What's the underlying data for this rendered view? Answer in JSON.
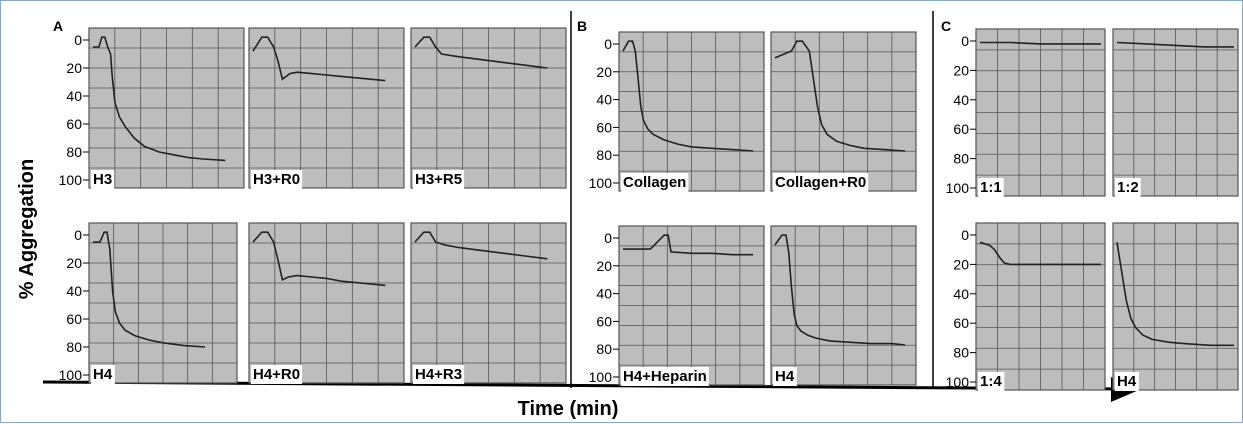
{
  "figure": {
    "y_label": "% Aggregation",
    "x_label": "Time (min)",
    "panels": [
      {
        "letter": "A"
      },
      {
        "letter": "B"
      },
      {
        "letter": "C"
      }
    ]
  },
  "chart_data": [
    {
      "type": "line",
      "panel": "A",
      "label": "H3",
      "yticks": [
        0,
        20,
        40,
        60,
        80,
        100
      ],
      "ylim": [
        0,
        100
      ],
      "series": [
        {
          "x": [
            0,
            0.04,
            0.06,
            0.08,
            0.1,
            0.12,
            0.13,
            0.15,
            0.18,
            0.22,
            0.28,
            0.35,
            0.45,
            0.55,
            0.65,
            0.75,
            0.9
          ],
          "y": [
            5,
            5,
            -2,
            -2,
            5,
            10,
            25,
            45,
            55,
            62,
            70,
            76,
            80,
            82,
            84,
            85,
            86
          ]
        }
      ]
    },
    {
      "type": "line",
      "panel": "A",
      "label": "H3+R0",
      "yticks": [],
      "ylim": [
        0,
        100
      ],
      "series": [
        {
          "x": [
            0,
            0.06,
            0.1,
            0.14,
            0.17,
            0.2,
            0.25,
            0.3,
            0.4,
            0.5,
            0.6,
            0.7,
            0.8,
            0.9
          ],
          "y": [
            8,
            -2,
            -2,
            5,
            15,
            28,
            24,
            23,
            24,
            25,
            26,
            27,
            28,
            29
          ]
        }
      ]
    },
    {
      "type": "line",
      "panel": "A",
      "label": "H3+R5",
      "yticks": [],
      "ylim": [
        0,
        100
      ],
      "series": [
        {
          "x": [
            0,
            0.06,
            0.1,
            0.14,
            0.18,
            0.3,
            0.45,
            0.6,
            0.75,
            0.9
          ],
          "y": [
            5,
            -2,
            -2,
            5,
            10,
            12,
            14,
            16,
            18,
            20
          ]
        }
      ]
    },
    {
      "type": "line",
      "panel": "A",
      "label": "H4",
      "yticks": [
        0,
        20,
        40,
        60,
        80,
        100
      ],
      "ylim": [
        0,
        100
      ],
      "series": [
        {
          "x": [
            0,
            0.05,
            0.08,
            0.1,
            0.12,
            0.14,
            0.16,
            0.19,
            0.23,
            0.3,
            0.4,
            0.5,
            0.65,
            0.8
          ],
          "y": [
            5,
            5,
            -2,
            -2,
            10,
            40,
            55,
            63,
            68,
            72,
            75,
            77,
            79,
            80
          ]
        }
      ]
    },
    {
      "type": "line",
      "panel": "A",
      "label": "H4+R0",
      "yticks": [],
      "ylim": [
        0,
        100
      ],
      "series": [
        {
          "x": [
            0,
            0.06,
            0.1,
            0.14,
            0.17,
            0.2,
            0.24,
            0.3,
            0.4,
            0.5,
            0.6,
            0.7,
            0.8,
            0.9
          ],
          "y": [
            5,
            -2,
            -2,
            5,
            18,
            32,
            30,
            29,
            30,
            31,
            33,
            34,
            35,
            36
          ]
        }
      ]
    },
    {
      "type": "line",
      "panel": "A",
      "label": "H4+R3",
      "yticks": [],
      "ylim": [
        0,
        100
      ],
      "series": [
        {
          "x": [
            0,
            0.06,
            0.1,
            0.14,
            0.2,
            0.3,
            0.45,
            0.6,
            0.75,
            0.9
          ],
          "y": [
            5,
            -2,
            -2,
            5,
            7,
            9,
            11,
            13,
            15,
            17
          ]
        }
      ]
    },
    {
      "type": "line",
      "panel": "B",
      "label": "Collagen",
      "yticks": [
        0,
        20,
        40,
        60,
        80,
        100
      ],
      "ylim": [
        0,
        100
      ],
      "series": [
        {
          "x": [
            0,
            0.04,
            0.07,
            0.09,
            0.11,
            0.13,
            0.15,
            0.18,
            0.22,
            0.3,
            0.4,
            0.5,
            0.65,
            0.8,
            0.95
          ],
          "y": [
            5,
            -2,
            -2,
            5,
            25,
            45,
            55,
            61,
            65,
            69,
            72,
            74,
            75,
            76,
            77
          ]
        }
      ]
    },
    {
      "type": "line",
      "panel": "B",
      "label": "Collagen+R0",
      "yticks": [],
      "ylim": [
        0,
        100
      ],
      "series": [
        {
          "x": [
            0,
            0.12,
            0.16,
            0.2,
            0.25,
            0.28,
            0.31,
            0.34,
            0.38,
            0.45,
            0.55,
            0.65,
            0.8,
            0.95
          ],
          "y": [
            10,
            5,
            -2,
            -2,
            5,
            25,
            45,
            58,
            65,
            70,
            73,
            75,
            76,
            77
          ]
        }
      ]
    },
    {
      "type": "line",
      "panel": "B",
      "label": "H4+Heparin",
      "yticks": [
        0,
        20,
        40,
        60,
        80,
        100
      ],
      "ylim": [
        0,
        100
      ],
      "series": [
        {
          "x": [
            0,
            0.1,
            0.2,
            0.3,
            0.33,
            0.35,
            0.5,
            0.65,
            0.8,
            0.95
          ],
          "y": [
            8,
            8,
            8,
            -2,
            -2,
            10,
            11,
            11,
            12,
            12
          ]
        }
      ]
    },
    {
      "type": "line",
      "panel": "B",
      "label": "H4",
      "yticks": [],
      "ylim": [
        0,
        100
      ],
      "series": [
        {
          "x": [
            0,
            0.05,
            0.08,
            0.1,
            0.12,
            0.14,
            0.16,
            0.19,
            0.24,
            0.3,
            0.4,
            0.55,
            0.7,
            0.85,
            0.95
          ],
          "y": [
            5,
            -2,
            -2,
            10,
            35,
            55,
            63,
            67,
            70,
            72,
            74,
            75,
            76,
            76,
            77
          ]
        }
      ]
    },
    {
      "type": "line",
      "panel": "C",
      "label": "1:1",
      "yticks": [
        0,
        20,
        40,
        60,
        80,
        100
      ],
      "ylim": [
        0,
        100
      ],
      "series": [
        {
          "x": [
            0,
            0.25,
            0.5,
            0.75,
            1
          ],
          "y": [
            1,
            1,
            2,
            2,
            2
          ]
        }
      ]
    },
    {
      "type": "line",
      "panel": "C",
      "label": "1:2",
      "yticks": [],
      "ylim": [
        0,
        100
      ],
      "series": [
        {
          "x": [
            0,
            0.25,
            0.5,
            0.75,
            1
          ],
          "y": [
            1,
            2,
            3,
            4,
            4
          ]
        }
      ]
    },
    {
      "type": "line",
      "panel": "C",
      "label": "1:4",
      "yticks": [
        0,
        20,
        40,
        60,
        80,
        100
      ],
      "ylim": [
        0,
        100
      ],
      "series": [
        {
          "x": [
            0,
            0.08,
            0.12,
            0.16,
            0.2,
            0.25,
            0.4,
            0.6,
            0.8,
            1
          ],
          "y": [
            5,
            7,
            10,
            15,
            19,
            20,
            20,
            20,
            20,
            20
          ]
        }
      ]
    },
    {
      "type": "line",
      "panel": "C",
      "label": "H4",
      "yticks": [],
      "ylim": [
        0,
        100
      ],
      "series": [
        {
          "x": [
            0,
            0.04,
            0.08,
            0.12,
            0.16,
            0.22,
            0.3,
            0.45,
            0.6,
            0.8,
            1
          ],
          "y": [
            5,
            25,
            45,
            57,
            63,
            68,
            71,
            73,
            74,
            75,
            75
          ]
        }
      ]
    }
  ]
}
